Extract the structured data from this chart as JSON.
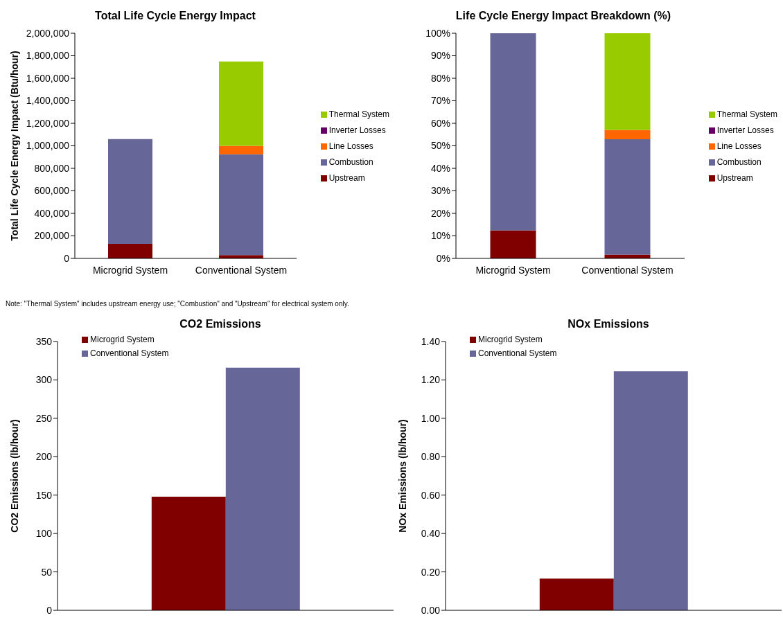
{
  "chart_data": [
    {
      "type": "bar",
      "title": "Total Life Cycle Energy Impact",
      "ylabel": "Total Life Cycle Energy Impact (Btu/hour)",
      "categories": [
        "Microgrid System",
        "Conventional System"
      ],
      "stacked": true,
      "legend": "right",
      "annotations": [
        "Note: \"Thermal System\" includes upstream energy use; \"Combustion\" and \"Upstream\" for electrical system only."
      ],
      "ylim": [
        0,
        2000000
      ],
      "yticks": [
        {
          "value": 0,
          "label": "0"
        },
        {
          "value": 200000,
          "label": "200,000"
        },
        {
          "value": 400000,
          "label": "400,000"
        },
        {
          "value": 600000,
          "label": "600,000"
        },
        {
          "value": 800000,
          "label": "800,000"
        },
        {
          "value": 1000000,
          "label": "1,000,000"
        },
        {
          "value": 1200000,
          "label": "1,200,000"
        },
        {
          "value": 1400000,
          "label": "1,400,000"
        },
        {
          "value": 1600000,
          "label": "1,600,000"
        },
        {
          "value": 1800000,
          "label": "1,800,000"
        },
        {
          "value": 2000000,
          "label": "2,000,000"
        }
      ],
      "series": [
        {
          "name": "Upstream",
          "color": "#800000",
          "values": [
            130000,
            30000
          ]
        },
        {
          "name": "Combustion",
          "color": "#666699",
          "values": [
            930000,
            895000
          ]
        },
        {
          "name": "Line Losses",
          "color": "#ff6600",
          "values": [
            0,
            75000
          ]
        },
        {
          "name": "Inverter Losses",
          "color": "#660066",
          "values": [
            0,
            0
          ]
        },
        {
          "name": "Thermal System",
          "color": "#99cc00",
          "values": [
            0,
            750000
          ]
        }
      ]
    },
    {
      "type": "bar",
      "title": "Life Cycle Energy Impact Breakdown (%)",
      "categories": [
        "Microgrid System",
        "Conventional System"
      ],
      "stacked": true,
      "legend": "right",
      "ylim": [
        0,
        100
      ],
      "yticks": [
        {
          "value": 0,
          "label": "0%"
        },
        {
          "value": 10,
          "label": "10%"
        },
        {
          "value": 20,
          "label": "20%"
        },
        {
          "value": 30,
          "label": "30%"
        },
        {
          "value": 40,
          "label": "40%"
        },
        {
          "value": 50,
          "label": "50%"
        },
        {
          "value": 60,
          "label": "60%"
        },
        {
          "value": 70,
          "label": "70%"
        },
        {
          "value": 80,
          "label": "80%"
        },
        {
          "value": 90,
          "label": "90%"
        },
        {
          "value": 100,
          "label": "100%"
        }
      ],
      "series": [
        {
          "name": "Upstream",
          "color": "#800000",
          "values": [
            12.5,
            1.7
          ]
        },
        {
          "name": "Combustion",
          "color": "#666699",
          "values": [
            87.5,
            51.2
          ]
        },
        {
          "name": "Line Losses",
          "color": "#ff6600",
          "values": [
            0,
            4.2
          ]
        },
        {
          "name": "Inverter Losses",
          "color": "#660066",
          "values": [
            0,
            0
          ]
        },
        {
          "name": "Thermal System",
          "color": "#99cc00",
          "values": [
            0,
            42.9
          ]
        }
      ]
    },
    {
      "type": "bar",
      "title": "CO2 Emissions",
      "ylabel": "CO2 Emissions (lb/hour)",
      "categories": [
        null
      ],
      "legend": "top left",
      "ylim": [
        0,
        350
      ],
      "yticks": [
        0,
        50,
        100,
        150,
        200,
        250,
        300,
        350
      ],
      "series": [
        {
          "name": "Microgrid System",
          "color": "#800000",
          "values": [
            148
          ]
        },
        {
          "name": "Conventional System",
          "color": "#666699",
          "values": [
            316
          ]
        }
      ]
    },
    {
      "type": "bar",
      "title": "NOx Emissions",
      "ylabel": "NOx Emissions (lb/hour)",
      "categories": [
        null
      ],
      "legend": "top left",
      "ylim": [
        0,
        1.4
      ],
      "yticks": [
        {
          "value": 0,
          "label": "0.00"
        },
        {
          "value": 0.2,
          "label": "0.20"
        },
        {
          "value": 0.4,
          "label": "0.40"
        },
        {
          "value": 0.6,
          "label": "0.60"
        },
        {
          "value": 0.8,
          "label": "0.80"
        },
        {
          "value": 1,
          "label": "1.00"
        },
        {
          "value": 1.2,
          "label": "1.20"
        },
        {
          "value": 1.4,
          "label": "1.40"
        }
      ],
      "series": [
        {
          "name": "Microgrid System",
          "color": "#800000",
          "values": [
            0.165
          ]
        },
        {
          "name": "Conventional System",
          "color": "#666699",
          "values": [
            1.245
          ]
        }
      ]
    }
  ]
}
